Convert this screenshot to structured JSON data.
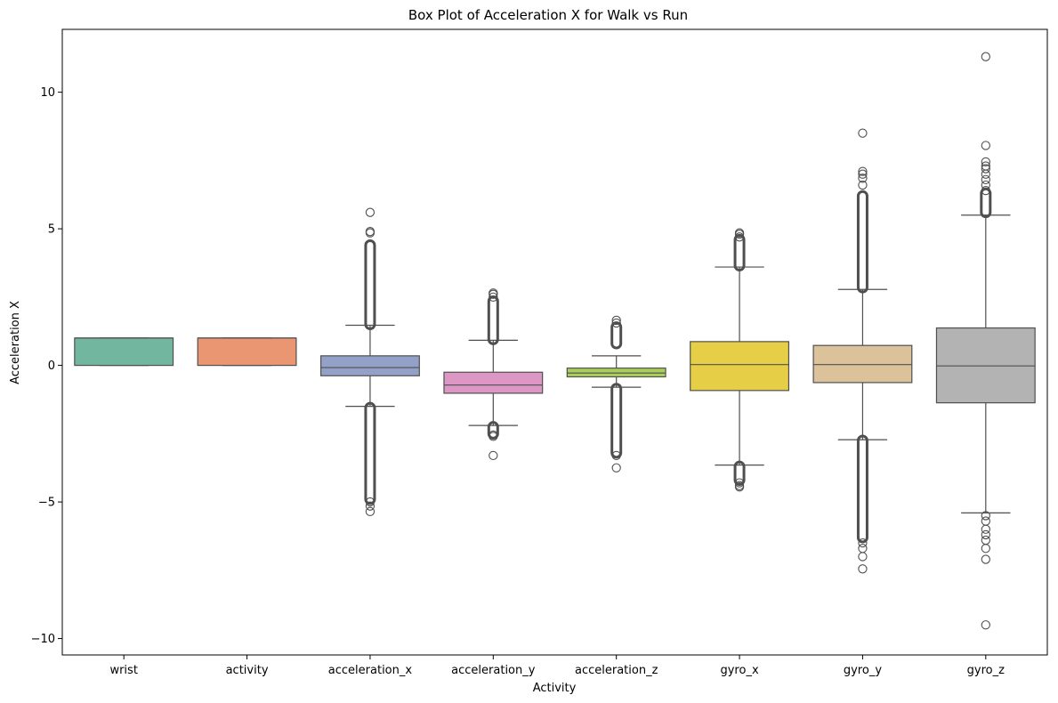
{
  "chart_data": {
    "type": "box",
    "title": "Box Plot of Acceleration X for Walk vs Run",
    "xlabel": "Activity",
    "ylabel": "Acceleration X",
    "ylim": [
      -10.6,
      12.3
    ],
    "yticks": [
      -10,
      -5,
      0,
      5,
      10
    ],
    "ytick_labels": [
      "−10",
      "−5",
      "0",
      "5",
      "10"
    ],
    "grid": false,
    "legend": "none",
    "box_edge_color": "#4f4f4f",
    "series": [
      {
        "category": "wrist",
        "color": "#73b6a0",
        "whisker_low": 0,
        "q1": 0,
        "median": 1,
        "q3": 1,
        "whisker_high": 1,
        "outliers_high": [],
        "outliers_low": [],
        "dense_high": null,
        "dense_low": null
      },
      {
        "category": "activity",
        "color": "#eb9673",
        "whisker_low": 0,
        "q1": 0,
        "median": 1,
        "q3": 1,
        "whisker_high": 1,
        "outliers_high": [],
        "outliers_low": [],
        "dense_high": null,
        "dense_low": null
      },
      {
        "category": "acceleration_x",
        "color": "#93a1c8",
        "whisker_low": -1.5,
        "q1": -0.38,
        "median": -0.08,
        "q3": 0.35,
        "whisker_high": 1.47,
        "outliers_high": [
          4.85,
          4.9,
          5.6
        ],
        "outliers_low": [
          -5.0,
          -5.15,
          -5.35
        ],
        "dense_high": [
          1.5,
          4.4
        ],
        "dense_low": [
          -4.9,
          -1.55
        ]
      },
      {
        "category": "acceleration_y",
        "color": "#dc97c4",
        "whisker_low": -2.2,
        "q1": -1.02,
        "median": -0.72,
        "q3": -0.25,
        "whisker_high": 0.92,
        "outliers_high": [
          2.5,
          2.6,
          2.65
        ],
        "outliers_low": [
          -2.55,
          -2.6,
          -3.3
        ],
        "dense_high": [
          0.95,
          2.35
        ],
        "dense_low": [
          -2.5,
          -2.25
        ]
      },
      {
        "category": "acceleration_z",
        "color": "#a9cf5a",
        "whisker_low": -0.8,
        "q1": -0.42,
        "median": -0.28,
        "q3": -0.1,
        "whisker_high": 0.35,
        "outliers_high": [
          1.55,
          1.65
        ],
        "outliers_low": [
          -3.3,
          -3.75
        ],
        "dense_high": [
          0.8,
          1.4
        ],
        "dense_low": [
          -3.2,
          -0.85
        ]
      },
      {
        "category": "gyro_x",
        "color": "#e6ce47",
        "whisker_low": -3.65,
        "q1": -0.92,
        "median": 0.03,
        "q3": 0.87,
        "whisker_high": 3.6,
        "outliers_high": [
          4.7,
          4.8,
          4.85
        ],
        "outliers_low": [
          -4.3,
          -4.4,
          -4.45
        ],
        "dense_high": [
          3.65,
          4.6
        ],
        "dense_low": [
          -4.2,
          -3.7
        ]
      },
      {
        "category": "gyro_y",
        "color": "#dbc29a",
        "whisker_low": -2.72,
        "q1": -0.63,
        "median": 0.03,
        "q3": 0.73,
        "whisker_high": 2.78,
        "outliers_high": [
          6.6,
          6.85,
          7.0,
          7.1,
          8.5
        ],
        "outliers_low": [
          -6.5,
          -6.7,
          -7.0,
          -7.45
        ],
        "dense_high": [
          2.85,
          6.2
        ],
        "dense_low": [
          -6.3,
          -2.75
        ]
      },
      {
        "category": "gyro_z",
        "color": "#b3b3b3",
        "whisker_low": -5.4,
        "q1": -1.37,
        "median": -0.02,
        "q3": 1.37,
        "whisker_high": 5.5,
        "outliers_high": [
          6.4,
          6.6,
          6.8,
          7.0,
          7.2,
          7.3,
          7.45,
          8.05,
          11.3
        ],
        "outliers_low": [
          -5.5,
          -5.7,
          -6.0,
          -6.2,
          -6.4,
          -6.7,
          -7.1,
          -9.5
        ],
        "dense_high": [
          5.6,
          6.3
        ],
        "dense_low": null
      }
    ]
  }
}
